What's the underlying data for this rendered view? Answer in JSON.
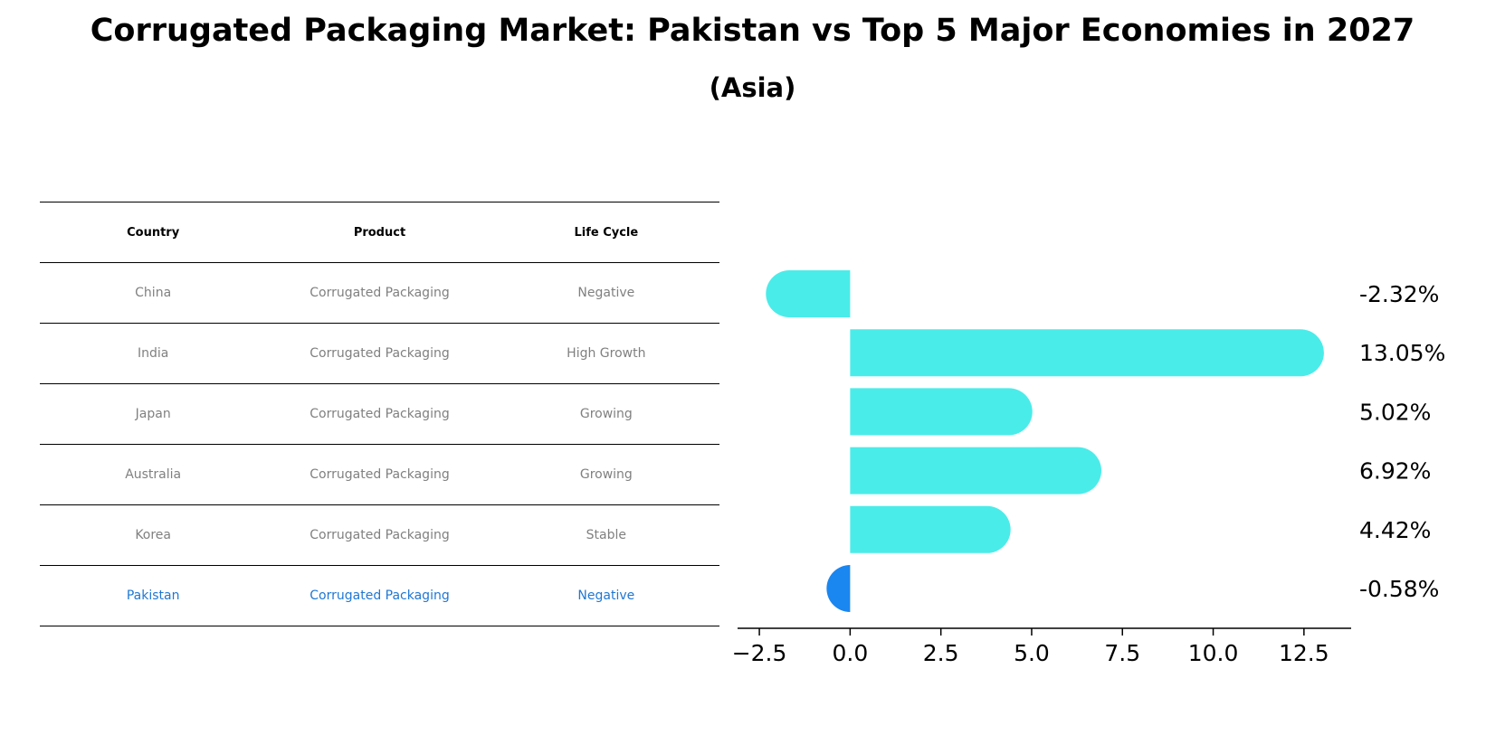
{
  "title": "Corrugated Packaging Market: Pakistan vs Top 5 Major Economies in 2027",
  "subtitle": "(Asia)",
  "table": {
    "headers": [
      "Country",
      "Product",
      "Life Cycle"
    ],
    "rows": [
      [
        "China",
        "Corrugated Packaging",
        "Negative"
      ],
      [
        "India",
        "Corrugated Packaging",
        "High Growth"
      ],
      [
        "Japan",
        "Corrugated Packaging",
        "Growing"
      ],
      [
        "Australia",
        "Corrugated Packaging",
        "Growing"
      ],
      [
        "Korea",
        "Corrugated Packaging",
        "Stable"
      ],
      [
        "Pakistan",
        "Corrugated Packaging",
        "Negative"
      ]
    ],
    "highlight_row": 5
  },
  "chart_data": {
    "type": "bar",
    "orientation": "horizontal",
    "categories": [
      "China",
      "India",
      "Japan",
      "Australia",
      "Korea",
      "Pakistan"
    ],
    "values": [
      -2.32,
      13.05,
      5.02,
      6.92,
      4.42,
      -0.58
    ],
    "value_labels": [
      "-2.32%",
      "13.05%",
      "5.02%",
      "6.92%",
      "4.42%",
      "-0.58%"
    ],
    "xlim": [
      -3.1,
      13.8
    ],
    "xticks": [
      -2.5,
      0.0,
      2.5,
      5.0,
      7.5,
      10.0,
      12.5
    ],
    "xtick_labels": [
      "−2.5",
      "0.0",
      "2.5",
      "5.0",
      "7.5",
      "10.0",
      "12.5"
    ],
    "grid": false,
    "colors": {
      "bar": "#4aece9",
      "highlight": "#1a86f0"
    }
  }
}
